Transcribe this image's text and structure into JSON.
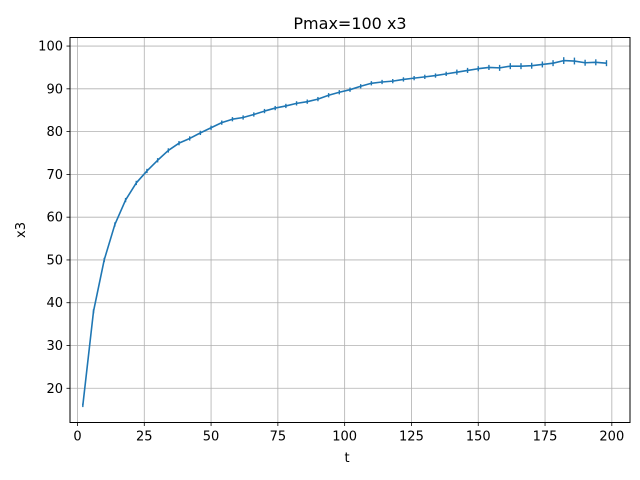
{
  "chart_data": {
    "type": "line",
    "title": "Pmax=100 x3",
    "xlabel": "t",
    "ylabel": "x3",
    "xlim": [
      -2.8,
      206.8
    ],
    "ylim": [
      12,
      102
    ],
    "grid": true,
    "xticks": [
      0,
      25,
      50,
      75,
      100,
      125,
      150,
      175,
      200
    ],
    "yticks": [
      20,
      30,
      40,
      50,
      60,
      70,
      80,
      90,
      100
    ],
    "color": "#1f77b4",
    "series": [
      {
        "name": "x3",
        "x": [
          2,
          6,
          10,
          14,
          18,
          22,
          26,
          30,
          34,
          38,
          42,
          46,
          50,
          54,
          58,
          62,
          66,
          70,
          74,
          78,
          82,
          86,
          90,
          94,
          98,
          102,
          106,
          110,
          114,
          118,
          122,
          126,
          130,
          134,
          138,
          142,
          146,
          150,
          154,
          158,
          162,
          166,
          170,
          174,
          178,
          182,
          186,
          190,
          194,
          198
        ],
        "y": [
          16.0,
          38.0,
          50.0,
          58.3,
          64.0,
          68.0,
          70.8,
          73.3,
          75.6,
          77.3,
          78.4,
          79.7,
          80.9,
          82.1,
          82.9,
          83.3,
          84.0,
          84.8,
          85.5,
          86.0,
          86.6,
          87.0,
          87.6,
          88.5,
          89.2,
          89.8,
          90.6,
          91.3,
          91.6,
          91.8,
          92.2,
          92.5,
          92.8,
          93.1,
          93.5,
          93.9,
          94.3,
          94.7,
          95.0,
          94.9,
          95.3,
          95.3,
          95.4,
          95.7,
          96.0,
          96.6,
          96.5,
          96.1,
          96.2,
          96.0
        ],
        "error": [
          0.4,
          0.5,
          0.5,
          0.5,
          0.5,
          0.5,
          0.5,
          0.5,
          0.5,
          0.5,
          0.5,
          0.5,
          0.5,
          0.5,
          0.5,
          0.5,
          0.5,
          0.5,
          0.5,
          0.5,
          0.5,
          0.5,
          0.5,
          0.5,
          0.5,
          0.5,
          0.5,
          0.5,
          0.5,
          0.5,
          0.5,
          0.5,
          0.5,
          0.5,
          0.5,
          0.6,
          0.6,
          0.6,
          0.6,
          0.7,
          0.7,
          0.7,
          0.7,
          0.7,
          0.7,
          0.8,
          0.8,
          0.7,
          0.7,
          0.7
        ]
      }
    ]
  }
}
